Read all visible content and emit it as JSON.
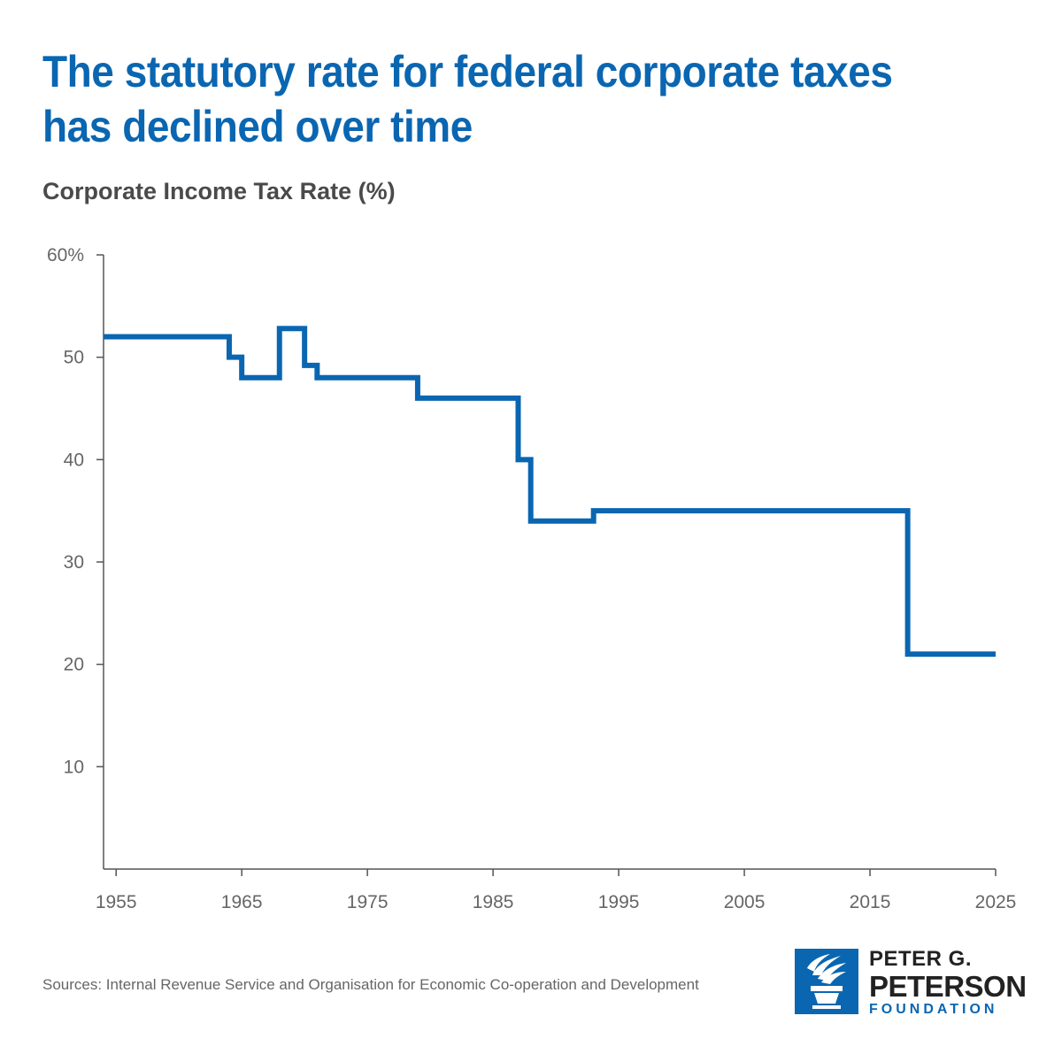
{
  "header": {
    "title": "The statutory rate for federal corporate taxes has declined over time",
    "subtitle": "Corporate Income Tax Rate (%)"
  },
  "footer": {
    "source": "Sources: Internal Revenue Service and Organisation for Economic Co-operation and Development"
  },
  "logo": {
    "line1": "PETER G.",
    "line2": "PETERSON",
    "line3": "FOUNDATION",
    "color": "#0a66b1"
  },
  "chart_data": {
    "type": "line",
    "step": true,
    "title": "The statutory rate for federal corporate taxes has declined over time",
    "ylabel": "Corporate Income Tax Rate (%)",
    "xlabel": "",
    "xlim": [
      1954,
      2025
    ],
    "ylim": [
      0,
      60
    ],
    "x_ticks": [
      1955,
      1965,
      1975,
      1985,
      1995,
      2005,
      2015,
      2025
    ],
    "x_tick_labels": [
      "1955",
      "1965",
      "1975",
      "1985",
      "1995",
      "2005",
      "2015",
      "2025"
    ],
    "y_ticks": [
      10,
      20,
      30,
      40,
      50,
      60
    ],
    "y_tick_labels": [
      "10",
      "20",
      "30",
      "40",
      "50",
      "60%"
    ],
    "line_color": "#0a66b1",
    "series": [
      {
        "name": "Corporate Income Tax Rate",
        "points": [
          {
            "year": 1954,
            "rate": 52
          },
          {
            "year": 1964,
            "rate": 50
          },
          {
            "year": 1965,
            "rate": 48
          },
          {
            "year": 1968,
            "rate": 52.8
          },
          {
            "year": 1970,
            "rate": 49.2
          },
          {
            "year": 1971,
            "rate": 48
          },
          {
            "year": 1979,
            "rate": 46
          },
          {
            "year": 1987,
            "rate": 40
          },
          {
            "year": 1988,
            "rate": 34
          },
          {
            "year": 1993,
            "rate": 35
          },
          {
            "year": 2018,
            "rate": 21
          },
          {
            "year": 2025,
            "rate": 21
          }
        ]
      }
    ]
  }
}
